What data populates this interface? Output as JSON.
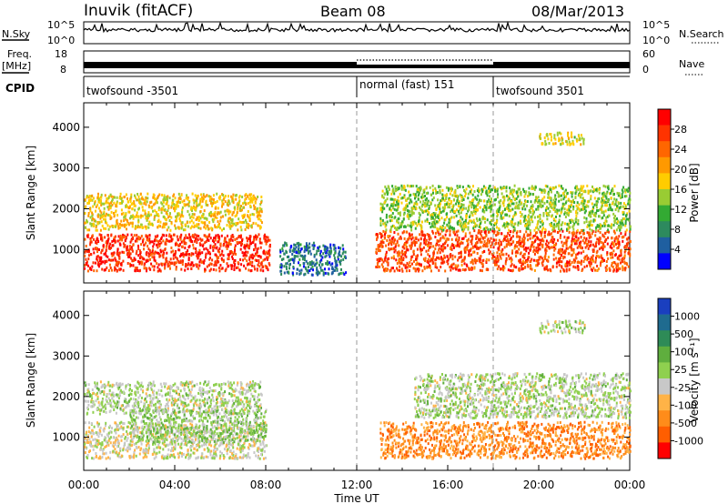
{
  "header": {
    "station": "Inuvik (fitACF)",
    "beam": "Beam 08",
    "date": "08/Mar/2013"
  },
  "strips": {
    "nsky_label": "N.Sky",
    "nsky_ticks": [
      "10^5",
      "10^0"
    ],
    "nsearch_label": "N.Search",
    "nsearch_ticks": [
      "10^5",
      "10^0"
    ],
    "freq_label_top": "Freq.",
    "freq_label_unit": "[MHz]",
    "freq_ticks": [
      "18",
      "8"
    ],
    "nave_label": "Nave",
    "nave_ticks": [
      "60",
      "0"
    ],
    "cpid_label": "CPID",
    "cpid_segments": [
      {
        "label": "twofsound -3501",
        "start_hour": 0,
        "end_hour": 12
      },
      {
        "label": "normal (fast) 151",
        "start_hour": 12,
        "end_hour": 18
      },
      {
        "label": "twofsound 3501",
        "start_hour": 18,
        "end_hour": 24
      }
    ]
  },
  "panels": {
    "ylabel": "Slant Range [km]",
    "xlabel": "Time UT",
    "power_colorbar": {
      "title": "Power [dB]",
      "ticks": [
        "28",
        "24",
        "20",
        "16",
        "12",
        "8",
        "4"
      ],
      "colors": [
        "#ff0000",
        "#ff3300",
        "#ff6600",
        "#ff9900",
        "#ffcc00",
        "#99cc33",
        "#33aa33",
        "#2d8a5e",
        "#1f5fa0",
        "#0000ff"
      ]
    },
    "velocity_colorbar": {
      "title": "Velocity [m s⁻¹]",
      "ticks": [
        "1000",
        "500",
        "100",
        "25",
        "-25",
        "-100",
        "-500",
        "-1000"
      ],
      "colors": [
        "#1a3fbf",
        "#1f6b8f",
        "#2e8b57",
        "#5fae3e",
        "#8fd04f",
        "#c8c8c8",
        "#ffb347",
        "#ff8c1a",
        "#ff5e00",
        "#ff0000"
      ]
    }
  },
  "chart_data": [
    {
      "type": "heatmap",
      "title": "Power [dB]",
      "xlabel": "Time UT",
      "ylabel": "Slant Range [km]",
      "x_ticks": [
        "00:00",
        "04:00",
        "08:00",
        "12:00",
        "16:00",
        "20:00",
        "00:00"
      ],
      "y_ticks": [
        1000,
        2000,
        3000,
        4000
      ],
      "xlim_hours": [
        0,
        24
      ],
      "ylim_km": [
        180,
        4600
      ],
      "color_scale": [
        0,
        32
      ],
      "scatter_regions": [
        {
          "start_hour": 0.0,
          "end_hour": 8.2,
          "range_low_km": 500,
          "range_high_km": 1400,
          "value": 28
        },
        {
          "start_hour": 0.0,
          "end_hour": 7.8,
          "range_low_km": 1500,
          "range_high_km": 2400,
          "value": 18
        },
        {
          "start_hour": 8.6,
          "end_hour": 11.5,
          "range_low_km": 400,
          "range_high_km": 1200,
          "value": 6
        },
        {
          "start_hour": 12.8,
          "end_hour": 24.0,
          "range_low_km": 500,
          "range_high_km": 1500,
          "value": 26
        },
        {
          "start_hour": 13.0,
          "end_hour": 24.0,
          "range_low_km": 1500,
          "range_high_km": 2600,
          "value": 14
        },
        {
          "start_hour": 20.0,
          "end_hour": 22.0,
          "range_low_km": 3600,
          "range_high_km": 3900,
          "value": 16
        }
      ]
    },
    {
      "type": "heatmap",
      "title": "Velocity [m s⁻¹]",
      "xlabel": "Time UT",
      "ylabel": "Slant Range [km]",
      "x_ticks": [
        "00:00",
        "04:00",
        "08:00",
        "12:00",
        "16:00",
        "20:00",
        "00:00"
      ],
      "y_ticks": [
        1000,
        2000,
        3000,
        4000
      ],
      "xlim_hours": [
        0,
        24
      ],
      "ylim_km": [
        180,
        4600
      ],
      "color_scale": [
        -1000,
        1000
      ],
      "scatter_regions": [
        {
          "start_hour": 0.0,
          "end_hour": 8.0,
          "range_low_km": 500,
          "range_high_km": 1400,
          "value": -100
        },
        {
          "start_hour": 2.0,
          "end_hour": 8.0,
          "range_low_km": 900,
          "range_high_km": 1700,
          "value": 100
        },
        {
          "start_hour": 0.0,
          "end_hour": 7.8,
          "range_low_km": 1600,
          "range_high_km": 2400,
          "value": 0
        },
        {
          "start_hour": 13.0,
          "end_hour": 24.0,
          "range_low_km": 500,
          "range_high_km": 1400,
          "value": -500
        },
        {
          "start_hour": 14.5,
          "end_hour": 24.0,
          "range_low_km": 1500,
          "range_high_km": 2600,
          "value": 0
        },
        {
          "start_hour": 20.0,
          "end_hour": 22.0,
          "range_low_km": 3600,
          "range_high_km": 3900,
          "value": 0
        }
      ]
    }
  ]
}
